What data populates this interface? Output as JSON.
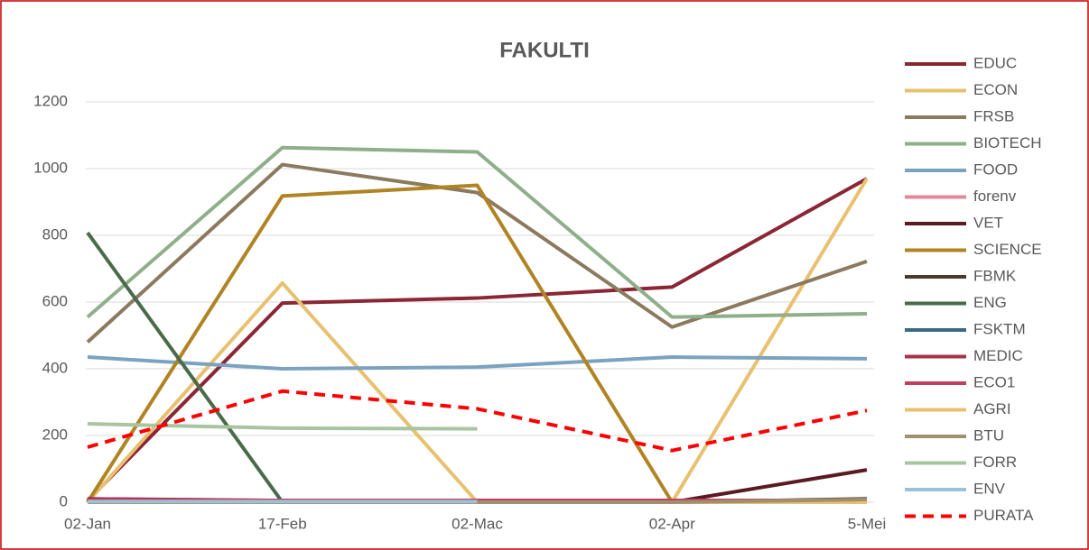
{
  "chart_data": {
    "type": "line",
    "title": "FAKULTI",
    "categories": [
      "02-Jan",
      "17-Feb",
      "02-Mac",
      "02-Apr",
      "5-Mei"
    ],
    "ylim": [
      0,
      1200
    ],
    "yticks": [
      0,
      200,
      400,
      600,
      800,
      1000,
      1200
    ],
    "grid": true,
    "legend": "right",
    "series": [
      {
        "name": "EDUC",
        "color": "#8b2635",
        "values": [
          5,
          597,
          612,
          645,
          970
        ]
      },
      {
        "name": "ECON",
        "color": "#e8c170",
        "values": [
          0,
          657,
          0,
          0,
          970
        ]
      },
      {
        "name": "FRSB",
        "color": "#8b7a5e",
        "values": [
          480,
          1012,
          928,
          525,
          722
        ]
      },
      {
        "name": "BIOTECH",
        "color": "#8faf8a",
        "values": [
          555,
          1063,
          1050,
          555,
          565
        ]
      },
      {
        "name": "FOOD",
        "color": "#7ba3c0",
        "values": [
          435,
          400,
          405,
          435,
          430
        ]
      },
      {
        "name": "forenv",
        "color": "#e08a9a",
        "values": [
          10,
          5,
          5,
          5,
          5
        ]
      },
      {
        "name": "VET",
        "color": "#5a1a22",
        "values": [
          0,
          0,
          0,
          0,
          97
        ]
      },
      {
        "name": "SCIENCE",
        "color": "#b08422",
        "values": [
          0,
          918,
          950,
          0,
          0
        ]
      },
      {
        "name": "FBMK",
        "color": "#4a3a2a",
        "values": [
          0,
          0,
          0,
          0,
          10
        ]
      },
      {
        "name": "ENG",
        "color": "#4a6b4a",
        "values": [
          808,
          0,
          null,
          null,
          null
        ]
      },
      {
        "name": "FSKTM",
        "color": "#3a6b85",
        "values": [
          0,
          0,
          0,
          0,
          0
        ]
      },
      {
        "name": "MEDIC",
        "color": "#a8304a",
        "values": [
          10,
          5,
          5,
          5,
          5
        ]
      },
      {
        "name": "ECO1",
        "color": "#c04060",
        "values": [
          5,
          5,
          5,
          5,
          5
        ]
      },
      {
        "name": "AGRI",
        "color": "#e8c170",
        "values": [
          0,
          0,
          0,
          0,
          0
        ]
      },
      {
        "name": "BTU",
        "color": "#a09070",
        "values": [
          0,
          0,
          0,
          0,
          8
        ]
      },
      {
        "name": "FORR",
        "color": "#a9c4a0",
        "values": [
          235,
          222,
          220,
          null,
          null
        ]
      },
      {
        "name": "ENV",
        "color": "#9bc1d6",
        "values": [
          2,
          2,
          2,
          null,
          null
        ]
      },
      {
        "name": "PURATA",
        "color": "#ff0000",
        "dashed": true,
        "values": [
          165,
          333,
          280,
          155,
          275
        ]
      }
    ]
  }
}
